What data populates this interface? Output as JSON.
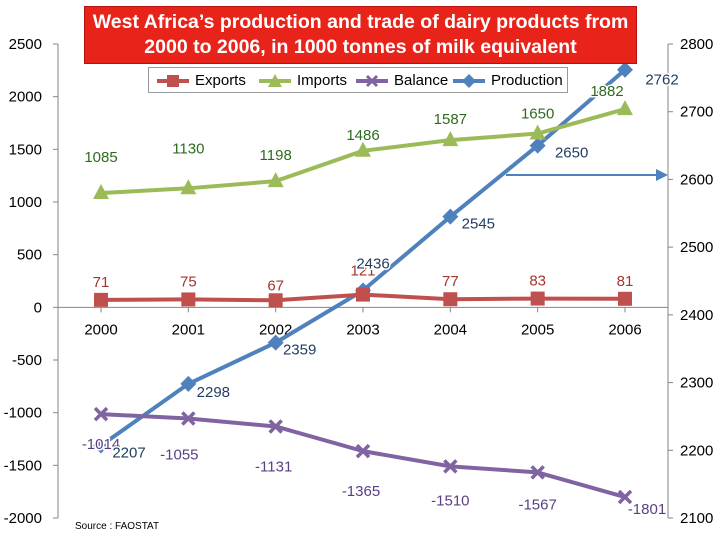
{
  "chart_data": {
    "type": "line",
    "title": "West Africa’s production and trade of dairy products from 2000 to 2006, in 1000 tonnes of milk equivalent",
    "title_lines": [
      "West Africa’s production and trade of dairy products from",
      "2000 to 2006, in 1000 tonnes of milk equivalent"
    ],
    "source": "Source : FAOSTAT",
    "categories": [
      "2000",
      "2001",
      "2002",
      "2003",
      "2004",
      "2005",
      "2006"
    ],
    "y_left": {
      "min": -2000,
      "max": 2500,
      "step": 500,
      "ticks": [
        "2500",
        "2000",
        "1500",
        "1000",
        "500",
        "0",
        "-500",
        "-1000",
        "-1500",
        "-2000"
      ]
    },
    "y_right": {
      "min": 2100,
      "max": 2800,
      "step": 100,
      "ticks": [
        "2800",
        "2700",
        "2600",
        "2500",
        "2400",
        "2300",
        "2200",
        "2100"
      ]
    },
    "legend_position": "top",
    "grid": false,
    "series": [
      {
        "name": "Exports",
        "axis": "left",
        "color": "#c0504d",
        "marker": "square",
        "values": [
          71,
          75,
          67,
          121,
          77,
          83,
          81
        ],
        "labels": [
          "71",
          "75",
          "67",
          "121",
          "77",
          "83",
          "81"
        ],
        "label_color": "#a5352d"
      },
      {
        "name": "Imports",
        "axis": "left",
        "color": "#9bbb59",
        "marker": "triangle",
        "values": [
          1085,
          1130,
          1198,
          1486,
          1587,
          1650,
          1882
        ],
        "labels": [
          "1085",
          "1130",
          "1198",
          "1486",
          "1587",
          "1650",
          "1882"
        ],
        "label_color": "#2e6b1f"
      },
      {
        "name": "Balance",
        "axis": "left",
        "color": "#8064a2",
        "marker": "x",
        "values": [
          -1014,
          -1055,
          -1131,
          -1365,
          -1510,
          -1567,
          -1801
        ],
        "labels": [
          "-1014",
          "-1055",
          "-1131",
          "-1365",
          "-1510",
          "-1567",
          "-1801"
        ],
        "label_color": "#5b3f85"
      },
      {
        "name": "Production",
        "axis": "right",
        "color": "#4f81bd",
        "marker": "diamond",
        "values": [
          2207,
          2298,
          2359,
          2436,
          2545,
          2650,
          2762
        ],
        "labels": [
          "2207",
          "2298",
          "2359",
          "2436",
          "2545",
          "2650",
          "2762"
        ],
        "label_color": "#1f3b5e"
      }
    ]
  }
}
